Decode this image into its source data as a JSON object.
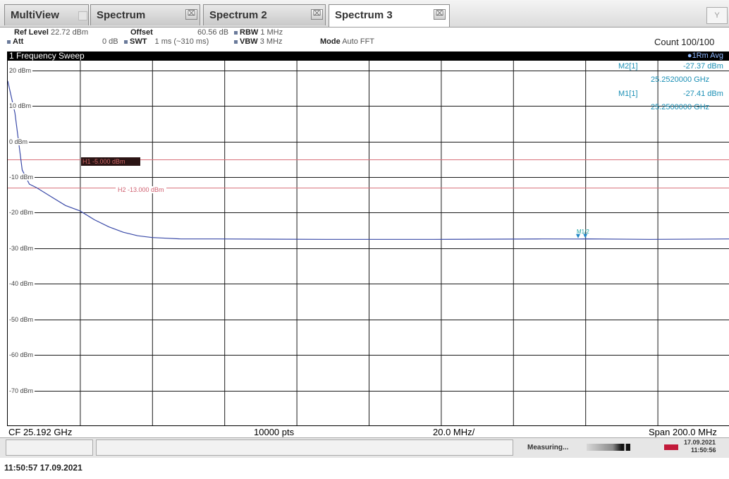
{
  "tabs": [
    {
      "label": "MultiView"
    },
    {
      "label": "Spectrum",
      "close": "⌧"
    },
    {
      "label": "Spectrum 2",
      "close": "⌧"
    },
    {
      "label": "Spectrum 3",
      "close": "⌧"
    }
  ],
  "corner_icon": "Y",
  "params": {
    "ref_level_label": "Ref Level",
    "ref_level_value": "22.72 dBm",
    "offset_label": "Offset",
    "offset_value": "60.56 dB",
    "rbw_label": "RBW",
    "rbw_value": "1 MHz",
    "att_label": "Att",
    "att_value": "0 dB",
    "swt_label": "SWT",
    "swt_value": "1 ms (~310 ms)",
    "vbw_label": "VBW",
    "vbw_value": "3 MHz",
    "mode_label": "Mode",
    "mode_value": "Auto FFT",
    "count": "Count 100/100"
  },
  "sweep": {
    "title": "1 Frequency Sweep",
    "trace": "●1Rm Avg"
  },
  "markers": {
    "m2_label": "M2[1]",
    "m2_level": "-27.37 dBm",
    "m2_freq": "25.2520000 GHz",
    "m1_label": "M1[1]",
    "m1_level": "-27.41 dBm",
    "m1_freq": "25.2500000 GHz",
    "plot_label": "M1/2"
  },
  "limit_lines": {
    "h1_label": "H1 -5.000 dBm",
    "h2_label": "H2 -13.000 dBm"
  },
  "bottom": {
    "cf": "CF 25.192 GHz",
    "pts": "10000 pts",
    "div": "20.0 MHz/",
    "span": "Span 200.0 MHz"
  },
  "status": {
    "measuring": "Measuring...",
    "date": "17.09.2021",
    "time": "11:50:56"
  },
  "footer": {
    "timestamp": "11:50:57 17.09.2021"
  },
  "chart_data": {
    "type": "line",
    "ylim": [
      -80,
      22.72
    ],
    "y_ticks": [
      "20 dBm",
      "10 dBm",
      "0 dBm",
      "-10 dBm",
      "-20 dBm",
      "-30 dBm",
      "-40 dBm",
      "-50 dBm",
      "-60 dBm",
      "-70 dBm"
    ],
    "y_tick_values": [
      20,
      10,
      0,
      -10,
      -20,
      -30,
      -40,
      -50,
      -60,
      -70
    ],
    "xlim": [
      25.092,
      25.292
    ],
    "x_unit": "GHz",
    "grid": true,
    "limits": [
      -5,
      -13
    ],
    "series": [
      {
        "x": [
          25.092,
          25.094,
          25.096,
          25.098,
          25.1,
          25.104,
          25.108,
          25.112,
          25.116,
          25.12,
          25.124,
          25.128,
          25.132,
          25.136,
          25.14,
          25.15,
          25.18,
          25.21,
          25.24,
          25.25,
          25.252,
          25.27,
          25.292
        ],
        "y": [
          17,
          8,
          -8,
          -12,
          -13,
          -15.5,
          -18,
          -19.5,
          -22,
          -24,
          -25.5,
          -26.5,
          -27,
          -27.2,
          -27.4,
          -27.4,
          -27.5,
          -27.5,
          -27.4,
          -27.41,
          -27.37,
          -27.5,
          -27.4
        ]
      }
    ]
  }
}
